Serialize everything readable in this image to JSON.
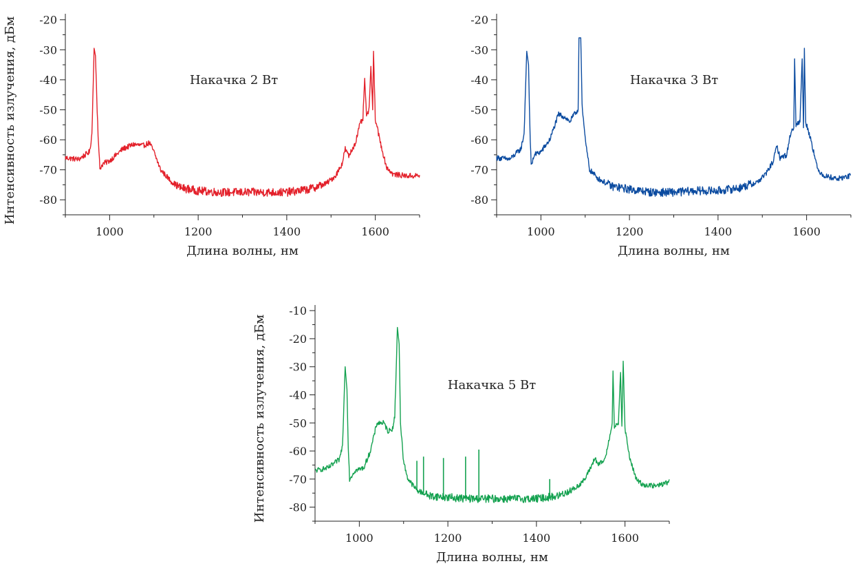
{
  "chart_data": [
    {
      "type": "line",
      "annotation": "Накачка 2 Вт",
      "xlabel": "Длина волны, нм",
      "ylabel": "Интенсивность излучения, дБм",
      "xlim": [
        900,
        1700
      ],
      "ylim": [
        -85,
        -18
      ],
      "x_ticks": [
        1000,
        1200,
        1400,
        1600
      ],
      "y_ticks": [
        -20,
        -30,
        -40,
        -50,
        -60,
        -70,
        -80
      ],
      "x_tick_labels": [
        "1000",
        "1200",
        "1400",
        "1600"
      ],
      "y_tick_labels": [
        "-20",
        "-30",
        "-40",
        "-50",
        "-60",
        "-70",
        "-80"
      ],
      "grid": false,
      "series": [
        {
          "color": "#e3202a",
          "points": [
            [
              900,
              -66
            ],
            [
              930,
              -66.5
            ],
            [
              955,
              -64
            ],
            [
              960,
              -58
            ],
            [
              965,
              -29.5
            ],
            [
              968,
              -32
            ],
            [
              972,
              -50
            ],
            [
              975,
              -62
            ],
            [
              978,
              -69.5
            ],
            [
              985,
              -68
            ],
            [
              1000,
              -67
            ],
            [
              1030,
              -63
            ],
            [
              1055,
              -61.5
            ],
            [
              1075,
              -62
            ],
            [
              1090,
              -61
            ],
            [
              1100,
              -64
            ],
            [
              1115,
              -70
            ],
            [
              1140,
              -74
            ],
            [
              1160,
              -76
            ],
            [
              1200,
              -77
            ],
            [
              1250,
              -77.5
            ],
            [
              1300,
              -77.5
            ],
            [
              1350,
              -77.5
            ],
            [
              1400,
              -77.5
            ],
            [
              1450,
              -76.5
            ],
            [
              1490,
              -74.5
            ],
            [
              1510,
              -72
            ],
            [
              1525,
              -68
            ],
            [
              1532,
              -63
            ],
            [
              1540,
              -65.5
            ],
            [
              1555,
              -61
            ],
            [
              1565,
              -55
            ],
            [
              1572,
              -53
            ],
            [
              1576,
              -39.5
            ],
            [
              1580,
              -52
            ],
            [
              1586,
              -50
            ],
            [
              1590,
              -35.5
            ],
            [
              1594,
              -50
            ],
            [
              1596,
              -30.5
            ],
            [
              1600,
              -53
            ],
            [
              1610,
              -60
            ],
            [
              1625,
              -69
            ],
            [
              1640,
              -71.5
            ],
            [
              1670,
              -72
            ],
            [
              1700,
              -72
            ]
          ],
          "spikes": []
        }
      ]
    },
    {
      "type": "line",
      "annotation": "Накачка 3 Вт",
      "xlabel": "Длина волны, нм",
      "ylabel": "",
      "xlim": [
        900,
        1700
      ],
      "ylim": [
        -85,
        -18
      ],
      "x_ticks": [
        1000,
        1200,
        1400,
        1600
      ],
      "y_ticks": [
        -20,
        -30,
        -40,
        -50,
        -60,
        -70,
        -80
      ],
      "x_tick_labels": [
        "1000",
        "1200",
        "1400",
        "1600"
      ],
      "y_tick_labels": [
        "-20",
        "-30",
        "-40",
        "-50",
        "-60",
        "-70",
        "-80"
      ],
      "grid": false,
      "series": [
        {
          "color": "#0b4ba0",
          "points": [
            [
              900,
              -66
            ],
            [
              930,
              -66.5
            ],
            [
              955,
              -63
            ],
            [
              962,
              -58
            ],
            [
              968,
              -30.5
            ],
            [
              972,
              -35
            ],
            [
              975,
              -55
            ],
            [
              978,
              -69
            ],
            [
              985,
              -65
            ],
            [
              1000,
              -64
            ],
            [
              1020,
              -60
            ],
            [
              1040,
              -51.5
            ],
            [
              1055,
              -52.5
            ],
            [
              1065,
              -54
            ],
            [
              1078,
              -51
            ],
            [
              1084,
              -50
            ],
            [
              1086,
              -26
            ],
            [
              1090,
              -26
            ],
            [
              1093,
              -48
            ],
            [
              1100,
              -60
            ],
            [
              1110,
              -70
            ],
            [
              1130,
              -73
            ],
            [
              1160,
              -75.5
            ],
            [
              1200,
              -76.5
            ],
            [
              1250,
              -77.5
            ],
            [
              1300,
              -77.5
            ],
            [
              1350,
              -77
            ],
            [
              1400,
              -77
            ],
            [
              1450,
              -76
            ],
            [
              1490,
              -74
            ],
            [
              1510,
              -71
            ],
            [
              1525,
              -67
            ],
            [
              1533,
              -62
            ],
            [
              1540,
              -66
            ],
            [
              1555,
              -65
            ],
            [
              1565,
              -57
            ],
            [
              1571,
              -56
            ],
            [
              1573,
              -33
            ],
            [
              1576,
              -55
            ],
            [
              1585,
              -54
            ],
            [
              1590,
              -33
            ],
            [
              1593,
              -56
            ],
            [
              1595,
              -29.5
            ],
            [
              1598,
              -54
            ],
            [
              1610,
              -60
            ],
            [
              1625,
              -70
            ],
            [
              1640,
              -72
            ],
            [
              1670,
              -73
            ],
            [
              1700,
              -72
            ]
          ],
          "spikes": []
        }
      ]
    },
    {
      "type": "line",
      "annotation": "Накачка 5 Вт",
      "xlabel": "Длина волны, нм",
      "ylabel": "Интенсивность излучения, дБм",
      "xlim": [
        900,
        1700
      ],
      "ylim": [
        -85,
        -8
      ],
      "x_ticks": [
        1000,
        1200,
        1400,
        1600
      ],
      "y_ticks": [
        -10,
        -20,
        -30,
        -40,
        -50,
        -60,
        -70,
        -80
      ],
      "x_tick_labels": [
        "1000",
        "1200",
        "1400",
        "1600"
      ],
      "y_tick_labels": [
        "-10",
        "-20",
        "-30",
        "-40",
        "-50",
        "-60",
        "-70",
        "-80"
      ],
      "grid": false,
      "series": [
        {
          "color": "#13a14f",
          "points": [
            [
              900,
              -67
            ],
            [
              930,
              -66
            ],
            [
              955,
              -63
            ],
            [
              962,
              -58
            ],
            [
              968,
              -30
            ],
            [
              972,
              -38
            ],
            [
              975,
              -58
            ],
            [
              978,
              -70
            ],
            [
              990,
              -67
            ],
            [
              1010,
              -66
            ],
            [
              1025,
              -60
            ],
            [
              1040,
              -50
            ],
            [
              1055,
              -50
            ],
            [
              1065,
              -53
            ],
            [
              1075,
              -52
            ],
            [
              1080,
              -48
            ],
            [
              1086,
              -16
            ],
            [
              1090,
              -22
            ],
            [
              1093,
              -50
            ],
            [
              1100,
              -64
            ],
            [
              1110,
              -70
            ],
            [
              1130,
              -74
            ],
            [
              1160,
              -76
            ],
            [
              1200,
              -76.5
            ],
            [
              1250,
              -77
            ],
            [
              1300,
              -77
            ],
            [
              1350,
              -77
            ],
            [
              1400,
              -77
            ],
            [
              1450,
              -76
            ],
            [
              1490,
              -73
            ],
            [
              1510,
              -70
            ],
            [
              1525,
              -65
            ],
            [
              1532,
              -62.5
            ],
            [
              1540,
              -65
            ],
            [
              1555,
              -63
            ],
            [
              1565,
              -55
            ],
            [
              1571,
              -50
            ],
            [
              1573,
              -31.5
            ],
            [
              1576,
              -52
            ],
            [
              1585,
              -50
            ],
            [
              1590,
              -32
            ],
            [
              1593,
              -52
            ],
            [
              1596,
              -28
            ],
            [
              1600,
              -52
            ],
            [
              1610,
              -62
            ],
            [
              1625,
              -70
            ],
            [
              1640,
              -72
            ],
            [
              1670,
              -72.5
            ],
            [
              1700,
              -71
            ]
          ],
          "spikes": [
            [
              1130,
              -63.5
            ],
            [
              1145,
              -62
            ],
            [
              1190,
              -62.5
            ],
            [
              1240,
              -62
            ],
            [
              1270,
              -59.5
            ],
            [
              1430,
              -70
            ]
          ]
        }
      ]
    }
  ]
}
